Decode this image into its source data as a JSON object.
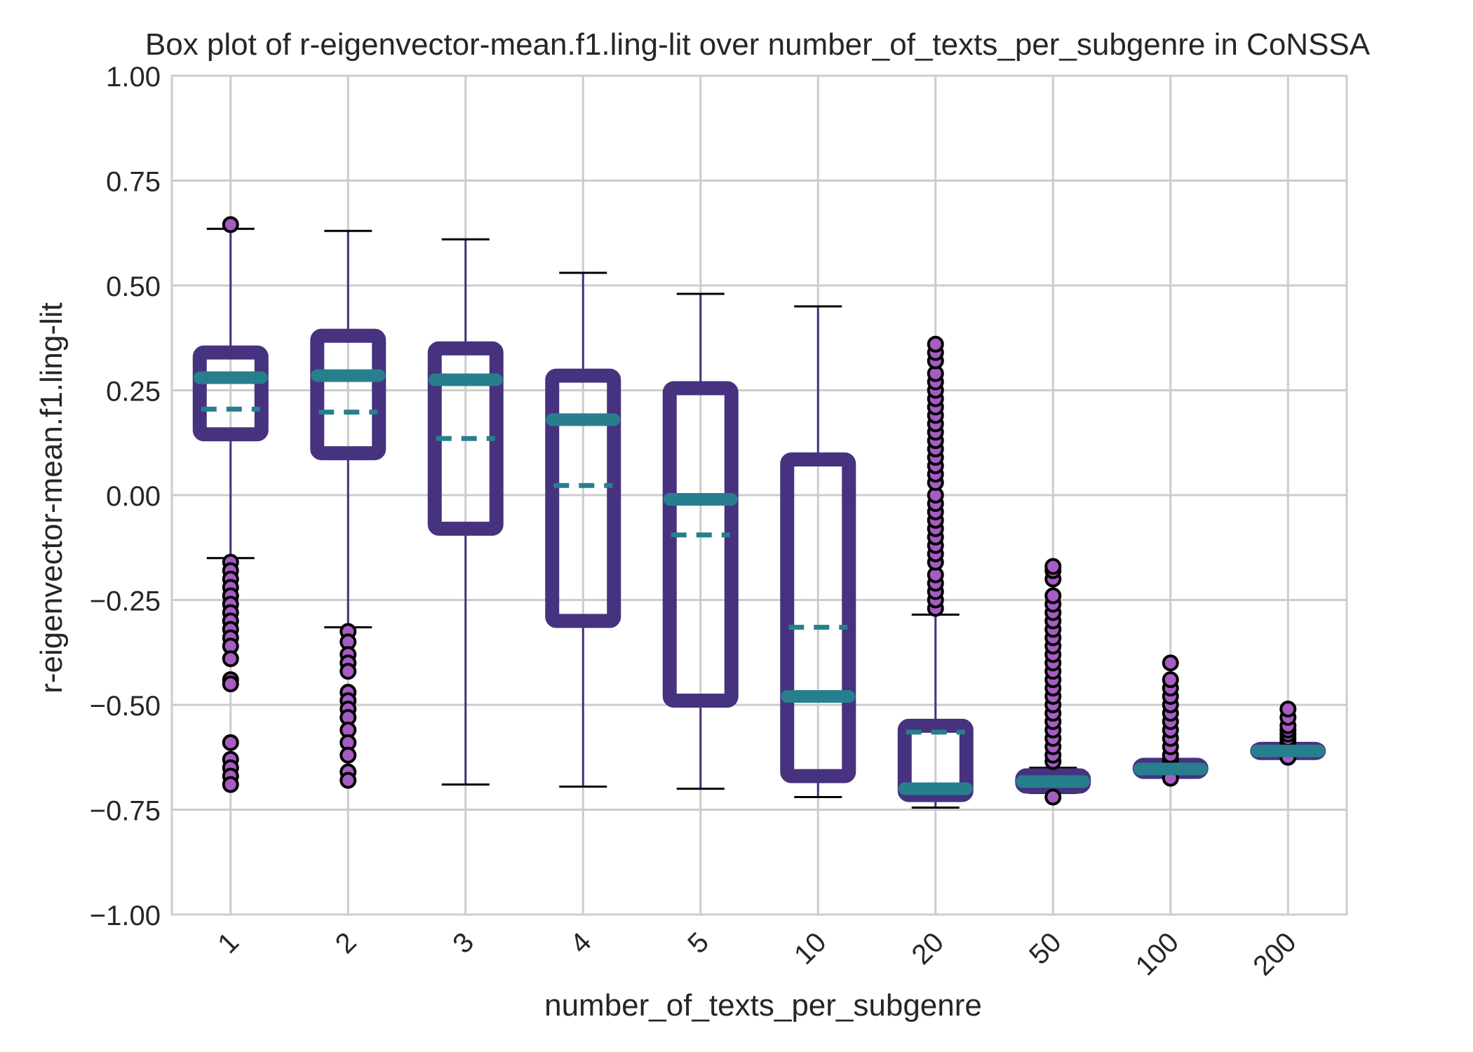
{
  "chart_data": {
    "type": "box",
    "title": "Box plot of r-eigenvector-mean.f1.ling-lit over number_of_texts_per_subgenre in CoNSSA",
    "xlabel": "number_of_texts_per_subgenre",
    "ylabel": "r-eigenvector-mean.f1.ling-lit",
    "ylim": [
      -1.0,
      1.0
    ],
    "yticks": [
      1.0,
      0.75,
      0.5,
      0.25,
      0.0,
      -0.25,
      -0.5,
      -0.75,
      -1.0
    ],
    "ytick_labels": [
      "1.00",
      "0.75",
      "0.50",
      "0.25",
      "0.00",
      "−0.25",
      "−0.50",
      "−0.75",
      "−1.00"
    ],
    "categories": [
      "1",
      "2",
      "3",
      "4",
      "5",
      "10",
      "20",
      "50",
      "100",
      "200"
    ],
    "grid": true,
    "colors": {
      "box": "#46327e",
      "median": "#277f8e",
      "mean": "#277f8e",
      "whisker": "#46327e",
      "cap": "#000000",
      "flier_fill": "#a65cc2",
      "flier_edge": "#000000",
      "grid": "#cccccc"
    },
    "boxes": [
      {
        "category": "1",
        "q1": 0.145,
        "median": 0.28,
        "q3": 0.34,
        "mean": 0.205,
        "whisker_low": -0.15,
        "whisker_high": 0.635,
        "fliers": [
          0.645,
          -0.16,
          -0.18,
          -0.2,
          -0.22,
          -0.24,
          -0.26,
          -0.28,
          -0.3,
          -0.32,
          -0.34,
          -0.36,
          -0.39,
          -0.44,
          -0.45,
          -0.59,
          -0.63,
          -0.65,
          -0.67,
          -0.69
        ]
      },
      {
        "category": "2",
        "q1": 0.1,
        "median": 0.285,
        "q3": 0.38,
        "mean": 0.198,
        "whisker_low": -0.315,
        "whisker_high": 0.63,
        "fliers": [
          -0.325,
          -0.35,
          -0.38,
          -0.4,
          -0.42,
          -0.47,
          -0.49,
          -0.51,
          -0.53,
          -0.56,
          -0.59,
          -0.62,
          -0.66,
          -0.68
        ]
      },
      {
        "category": "3",
        "q1": -0.08,
        "median": 0.275,
        "q3": 0.35,
        "mean": 0.135,
        "whisker_low": -0.69,
        "whisker_high": 0.61,
        "fliers": []
      },
      {
        "category": "4",
        "q1": -0.3,
        "median": 0.18,
        "q3": 0.285,
        "mean": 0.023,
        "whisker_low": -0.695,
        "whisker_high": 0.53,
        "fliers": []
      },
      {
        "category": "5",
        "q1": -0.49,
        "median": -0.01,
        "q3": 0.255,
        "mean": -0.095,
        "whisker_low": -0.7,
        "whisker_high": 0.48,
        "fliers": []
      },
      {
        "category": "10",
        "q1": -0.67,
        "median": -0.48,
        "q3": 0.085,
        "mean": -0.315,
        "whisker_low": -0.72,
        "whisker_high": 0.45,
        "fliers": []
      },
      {
        "category": "20",
        "q1": -0.715,
        "median": -0.7,
        "q3": -0.55,
        "mean": -0.565,
        "whisker_low": -0.745,
        "whisker_high": -0.285,
        "fliers": [
          -0.27,
          -0.25,
          -0.23,
          -0.21,
          -0.19,
          -0.16,
          -0.14,
          -0.12,
          -0.1,
          -0.08,
          -0.06,
          -0.04,
          -0.02,
          0.0,
          0.03,
          0.05,
          0.07,
          0.09,
          0.11,
          0.13,
          0.15,
          0.17,
          0.19,
          0.21,
          0.23,
          0.25,
          0.27,
          0.29,
          0.32,
          0.34,
          0.36
        ]
      },
      {
        "category": "50",
        "q1": -0.695,
        "median": -0.683,
        "q3": -0.668,
        "mean": -0.683,
        "whisker_low": -0.71,
        "whisker_high": -0.65,
        "fliers": [
          -0.72,
          -0.635,
          -0.62,
          -0.6,
          -0.58,
          -0.56,
          -0.54,
          -0.52,
          -0.5,
          -0.48,
          -0.46,
          -0.44,
          -0.42,
          -0.4,
          -0.38,
          -0.36,
          -0.34,
          -0.32,
          -0.3,
          -0.28,
          -0.26,
          -0.24,
          -0.2,
          -0.18,
          -0.17
        ]
      },
      {
        "category": "100",
        "q1": -0.66,
        "median": -0.653,
        "q3": -0.643,
        "mean": -0.653,
        "whisker_low": -0.665,
        "whisker_high": -0.64,
        "fliers": [
          -0.675,
          -0.63,
          -0.62,
          -0.6,
          -0.58,
          -0.56,
          -0.54,
          -0.52,
          -0.5,
          -0.48,
          -0.46,
          -0.44,
          -0.4
        ]
      },
      {
        "category": "200",
        "q1": -0.615,
        "median": -0.61,
        "q3": -0.605,
        "mean": -0.61,
        "whisker_low": -0.62,
        "whisker_high": -0.6,
        "fliers": [
          -0.625,
          -0.59,
          -0.58,
          -0.57,
          -0.56,
          -0.55,
          -0.53,
          -0.51
        ]
      }
    ]
  }
}
